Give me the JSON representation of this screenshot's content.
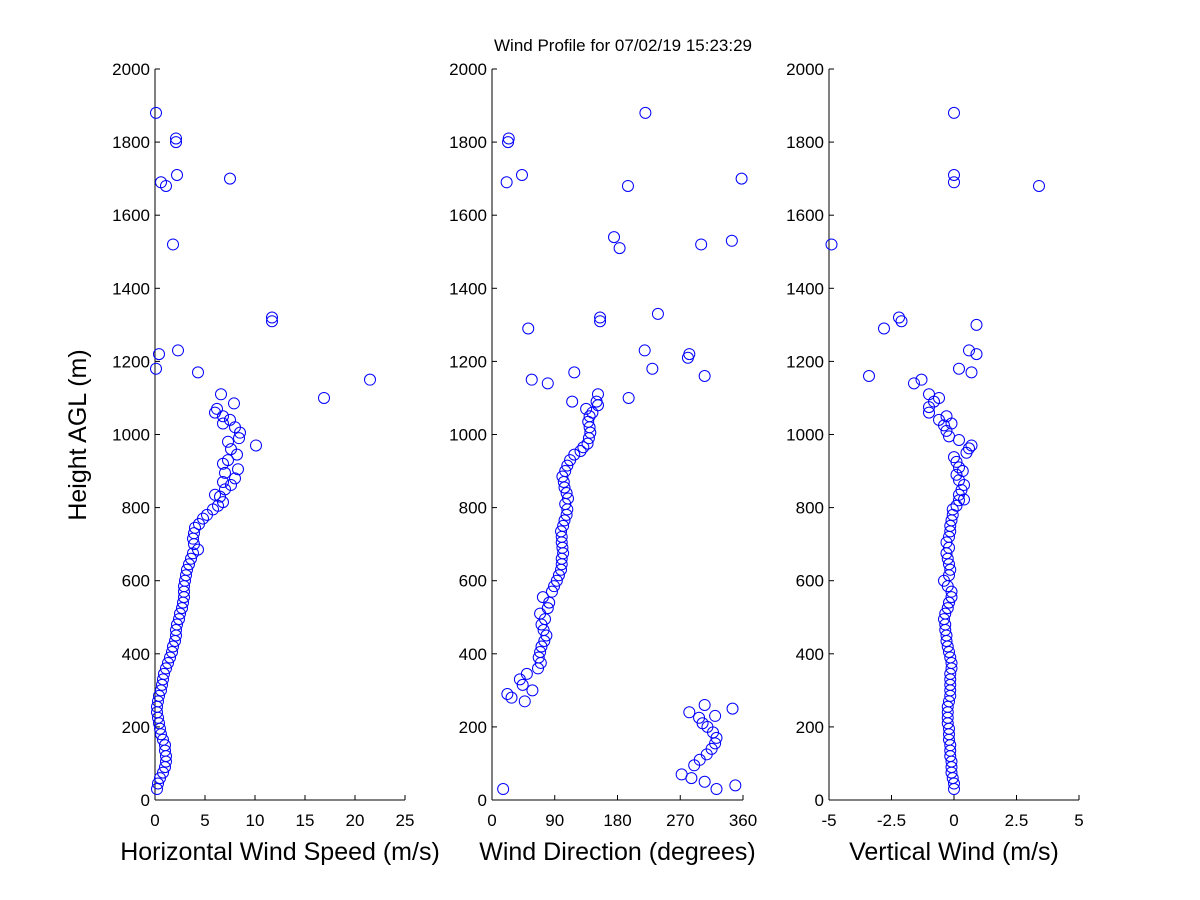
{
  "title": "Wind Profile for  07/02/19 15:23:29",
  "ylabel": "Height AGL (m)",
  "chart_data": [
    {
      "type": "scatter",
      "xlabel": "Horizontal Wind Speed (m/s)",
      "xlim": [
        0,
        25
      ],
      "ylim": [
        0,
        2000
      ],
      "xticks": [
        "0",
        "5",
        "10",
        "15",
        "20",
        "25"
      ],
      "yticks": [
        "0",
        "200",
        "400",
        "600",
        "800",
        "1000",
        "1200",
        "1400",
        "1600",
        "1800",
        "2000"
      ],
      "color": "#0000ff",
      "marker": "open-circle",
      "grid": false,
      "points": [
        [
          0.2,
          30
        ],
        [
          0.3,
          45
        ],
        [
          0.5,
          60
        ],
        [
          0.8,
          75
        ],
        [
          1.0,
          90
        ],
        [
          1.1,
          105
        ],
        [
          1.1,
          120
        ],
        [
          1.0,
          135
        ],
        [
          1.0,
          150
        ],
        [
          0.8,
          165
        ],
        [
          0.6,
          180
        ],
        [
          0.5,
          195
        ],
        [
          0.4,
          210
        ],
        [
          0.3,
          225
        ],
        [
          0.2,
          240
        ],
        [
          0.2,
          255
        ],
        [
          0.3,
          270
        ],
        [
          0.4,
          285
        ],
        [
          0.6,
          300
        ],
        [
          0.7,
          315
        ],
        [
          0.8,
          330
        ],
        [
          0.9,
          345
        ],
        [
          1.1,
          360
        ],
        [
          1.3,
          375
        ],
        [
          1.5,
          390
        ],
        [
          1.7,
          405
        ],
        [
          1.8,
          420
        ],
        [
          2.0,
          435
        ],
        [
          2.1,
          450
        ],
        [
          2.1,
          465
        ],
        [
          2.2,
          480
        ],
        [
          2.4,
          495
        ],
        [
          2.5,
          510
        ],
        [
          2.7,
          525
        ],
        [
          2.8,
          540
        ],
        [
          2.9,
          555
        ],
        [
          2.9,
          570
        ],
        [
          2.9,
          585
        ],
        [
          3.0,
          600
        ],
        [
          3.1,
          615
        ],
        [
          3.2,
          630
        ],
        [
          3.4,
          645
        ],
        [
          3.6,
          660
        ],
        [
          3.8,
          675
        ],
        [
          4.3,
          685
        ],
        [
          3.9,
          700
        ],
        [
          3.8,
          715
        ],
        [
          3.9,
          730
        ],
        [
          4.0,
          745
        ],
        [
          4.4,
          755
        ],
        [
          4.8,
          770
        ],
        [
          5.2,
          780
        ],
        [
          5.8,
          795
        ],
        [
          6.3,
          805
        ],
        [
          6.8,
          815
        ],
        [
          6.5,
          830
        ],
        [
          6.0,
          835
        ],
        [
          7.0,
          850
        ],
        [
          7.6,
          862
        ],
        [
          6.8,
          870
        ],
        [
          8.0,
          880
        ],
        [
          7.0,
          895
        ],
        [
          8.3,
          905
        ],
        [
          6.8,
          920
        ],
        [
          7.3,
          930
        ],
        [
          8.2,
          945
        ],
        [
          7.6,
          960
        ],
        [
          10.1,
          970
        ],
        [
          7.3,
          980
        ],
        [
          8.4,
          990
        ],
        [
          8.5,
          1005
        ],
        [
          8.0,
          1020
        ],
        [
          6.8,
          1030
        ],
        [
          7.5,
          1040
        ],
        [
          6.8,
          1050
        ],
        [
          6.0,
          1060
        ],
        [
          6.2,
          1070
        ],
        [
          7.9,
          1085
        ],
        [
          6.6,
          1110
        ],
        [
          16.9,
          1100
        ],
        [
          21.5,
          1150
        ],
        [
          4.3,
          1170
        ],
        [
          0.1,
          1180
        ],
        [
          0.4,
          1220
        ],
        [
          2.3,
          1230
        ],
        [
          11.7,
          1310
        ],
        [
          11.7,
          1320
        ],
        [
          1.8,
          1520
        ],
        [
          7.5,
          1700
        ],
        [
          2.2,
          1710
        ],
        [
          0.6,
          1690
        ],
        [
          1.1,
          1680
        ],
        [
          2.1,
          1800
        ],
        [
          2.1,
          1810
        ],
        [
          0.1,
          1880
        ]
      ]
    },
    {
      "type": "scatter",
      "xlabel": "Wind Direction (degrees)",
      "xlim": [
        0,
        360
      ],
      "ylim": [
        0,
        2000
      ],
      "xticks": [
        "0",
        "90",
        "180",
        "270",
        "360"
      ],
      "yticks": [
        "0",
        "200",
        "400",
        "600",
        "800",
        "1000",
        "1200",
        "1400",
        "1600",
        "1800",
        "2000"
      ],
      "color": "#0000ff",
      "marker": "open-circle",
      "grid": false,
      "points": [
        [
          16,
          30
        ],
        [
          322,
          30
        ],
        [
          272,
          70
        ],
        [
          286,
          60
        ],
        [
          305,
          50
        ],
        [
          349,
          40
        ],
        [
          290,
          95
        ],
        [
          298,
          110
        ],
        [
          308,
          125
        ],
        [
          315,
          140
        ],
        [
          320,
          155
        ],
        [
          322,
          170
        ],
        [
          317,
          185
        ],
        [
          309,
          200
        ],
        [
          302,
          210
        ],
        [
          297,
          225
        ],
        [
          283,
          240
        ],
        [
          320,
          230
        ],
        [
          305,
          260
        ],
        [
          345,
          250
        ],
        [
          47,
          270
        ],
        [
          28,
          280
        ],
        [
          22,
          290
        ],
        [
          58,
          300
        ],
        [
          44,
          315
        ],
        [
          40,
          330
        ],
        [
          50,
          345
        ],
        [
          66,
          360
        ],
        [
          70,
          375
        ],
        [
          67,
          390
        ],
        [
          69,
          405
        ],
        [
          71,
          420
        ],
        [
          75,
          435
        ],
        [
          78,
          450
        ],
        [
          74,
          465
        ],
        [
          71,
          480
        ],
        [
          76,
          495
        ],
        [
          69,
          510
        ],
        [
          80,
          525
        ],
        [
          82,
          540
        ],
        [
          73,
          555
        ],
        [
          86,
          570
        ],
        [
          89,
          585
        ],
        [
          93,
          600
        ],
        [
          96,
          615
        ],
        [
          99,
          630
        ],
        [
          100,
          645
        ],
        [
          100,
          660
        ],
        [
          102,
          675
        ],
        [
          101,
          690
        ],
        [
          100,
          705
        ],
        [
          100,
          720
        ],
        [
          99,
          735
        ],
        [
          102,
          750
        ],
        [
          104,
          765
        ],
        [
          107,
          780
        ],
        [
          108,
          795
        ],
        [
          105,
          810
        ],
        [
          109,
          825
        ],
        [
          107,
          840
        ],
        [
          104,
          855
        ],
        [
          103,
          870
        ],
        [
          101,
          885
        ],
        [
          105,
          900
        ],
        [
          108,
          915
        ],
        [
          112,
          930
        ],
        [
          118,
          945
        ],
        [
          127,
          955
        ],
        [
          131,
          965
        ],
        [
          137,
          975
        ],
        [
          139,
          990
        ],
        [
          141,
          1005
        ],
        [
          140,
          1020
        ],
        [
          138,
          1035
        ],
        [
          140,
          1050
        ],
        [
          144,
          1060
        ],
        [
          135,
          1070
        ],
        [
          152,
          1080
        ],
        [
          150,
          1090
        ],
        [
          115,
          1090
        ],
        [
          152,
          1110
        ],
        [
          196,
          1100
        ],
        [
          80,
          1140
        ],
        [
          57,
          1150
        ],
        [
          118,
          1170
        ],
        [
          230,
          1180
        ],
        [
          281,
          1210
        ],
        [
          283,
          1220
        ],
        [
          219,
          1230
        ],
        [
          305,
          1160
        ],
        [
          52,
          1290
        ],
        [
          155,
          1310
        ],
        [
          155,
          1320
        ],
        [
          238,
          1330
        ],
        [
          183,
          1510
        ],
        [
          175,
          1540
        ],
        [
          300,
          1520
        ],
        [
          344,
          1530
        ],
        [
          195,
          1680
        ],
        [
          358,
          1700
        ],
        [
          21,
          1690
        ],
        [
          43,
          1710
        ],
        [
          23,
          1800
        ],
        [
          24,
          1810
        ],
        [
          220,
          1880
        ]
      ]
    },
    {
      "type": "scatter",
      "xlabel": "Vertical Wind (m/s)",
      "xlim": [
        -5,
        5
      ],
      "ylim": [
        0,
        2000
      ],
      "xticks": [
        "-5",
        "-2.5",
        "0",
        "2.5",
        "5"
      ],
      "yticks": [
        "0",
        "200",
        "400",
        "600",
        "800",
        "1000",
        "1200",
        "1400",
        "1600",
        "1800",
        "2000"
      ],
      "color": "#0000ff",
      "marker": "open-circle",
      "grid": false,
      "points": [
        [
          0.0,
          30
        ],
        [
          0.0,
          45
        ],
        [
          -0.05,
          60
        ],
        [
          -0.1,
          75
        ],
        [
          -0.1,
          90
        ],
        [
          -0.1,
          105
        ],
        [
          -0.15,
          120
        ],
        [
          -0.15,
          135
        ],
        [
          -0.15,
          150
        ],
        [
          -0.2,
          165
        ],
        [
          -0.2,
          180
        ],
        [
          -0.2,
          195
        ],
        [
          -0.25,
          210
        ],
        [
          -0.25,
          225
        ],
        [
          -0.25,
          240
        ],
        [
          -0.25,
          255
        ],
        [
          -0.2,
          270
        ],
        [
          -0.15,
          285
        ],
        [
          -0.15,
          300
        ],
        [
          -0.15,
          315
        ],
        [
          -0.15,
          330
        ],
        [
          -0.15,
          345
        ],
        [
          -0.1,
          360
        ],
        [
          -0.1,
          375
        ],
        [
          -0.15,
          390
        ],
        [
          -0.2,
          405
        ],
        [
          -0.25,
          420
        ],
        [
          -0.3,
          435
        ],
        [
          -0.3,
          450
        ],
        [
          -0.35,
          465
        ],
        [
          -0.35,
          480
        ],
        [
          -0.4,
          495
        ],
        [
          -0.35,
          510
        ],
        [
          -0.25,
          525
        ],
        [
          -0.2,
          540
        ],
        [
          -0.1,
          555
        ],
        [
          -0.1,
          570
        ],
        [
          -0.25,
          585
        ],
        [
          -0.4,
          600
        ],
        [
          -0.2,
          615
        ],
        [
          -0.15,
          630
        ],
        [
          -0.2,
          645
        ],
        [
          -0.25,
          660
        ],
        [
          -0.3,
          675
        ],
        [
          -0.2,
          690
        ],
        [
          -0.3,
          705
        ],
        [
          -0.2,
          720
        ],
        [
          -0.15,
          735
        ],
        [
          -0.15,
          750
        ],
        [
          -0.1,
          765
        ],
        [
          -0.05,
          780
        ],
        [
          -0.05,
          795
        ],
        [
          0.1,
          805
        ],
        [
          0.2,
          820
        ],
        [
          0.4,
          822
        ],
        [
          0.2,
          835
        ],
        [
          0.3,
          848
        ],
        [
          0.4,
          862
        ],
        [
          0.2,
          875
        ],
        [
          0.1,
          890
        ],
        [
          0.35,
          900
        ],
        [
          0.2,
          910
        ],
        [
          0.1,
          925
        ],
        [
          0.0,
          938
        ],
        [
          0.5,
          950
        ],
        [
          0.6,
          962
        ],
        [
          0.7,
          970
        ],
        [
          0.2,
          985
        ],
        [
          -0.2,
          995
        ],
        [
          -0.3,
          1010
        ],
        [
          -0.4,
          1025
        ],
        [
          -0.1,
          1030
        ],
        [
          -0.6,
          1040
        ],
        [
          -0.3,
          1050
        ],
        [
          -1.0,
          1060
        ],
        [
          -1.0,
          1075
        ],
        [
          -0.8,
          1090
        ],
        [
          -0.6,
          1100
        ],
        [
          -1.0,
          1110
        ],
        [
          -1.3,
          1150
        ],
        [
          -1.6,
          1140
        ],
        [
          -3.4,
          1160
        ],
        [
          0.2,
          1180
        ],
        [
          0.7,
          1170
        ],
        [
          0.9,
          1220
        ],
        [
          0.6,
          1230
        ],
        [
          0.9,
          1300
        ],
        [
          -2.1,
          1310
        ],
        [
          -2.2,
          1320
        ],
        [
          -2.8,
          1290
        ],
        [
          -4.9,
          1520
        ],
        [
          3.4,
          1680
        ],
        [
          0.0,
          1690
        ],
        [
          0.0,
          1710
        ],
        [
          0.0,
          1880
        ]
      ]
    }
  ]
}
